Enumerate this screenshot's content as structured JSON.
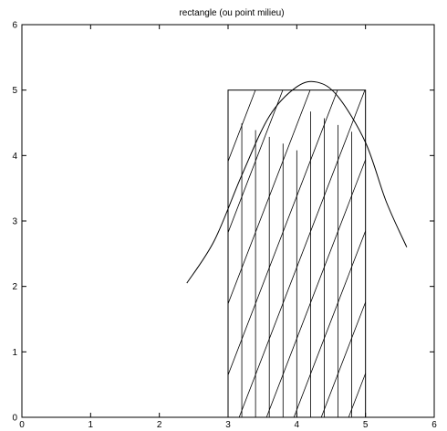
{
  "chart_data": {
    "type": "line",
    "title": "rectangle (ou point milieu)",
    "xlabel": "",
    "ylabel": "",
    "xlim": [
      0,
      6
    ],
    "ylim": [
      0,
      6
    ],
    "x_ticks": [
      "0",
      "1",
      "2",
      "3",
      "4",
      "5",
      "6"
    ],
    "y_ticks": [
      "0",
      "1",
      "2",
      "3",
      "4",
      "5",
      "6"
    ],
    "grid": false,
    "series": [
      {
        "curve": "bell",
        "x": [
          2.4,
          2.8,
          3.2,
          3.6,
          4.0,
          4.3,
          4.6,
          5.0,
          5.3,
          5.6
        ],
        "y": [
          2.05,
          2.7,
          3.7,
          4.6,
          5.05,
          5.12,
          4.9,
          4.2,
          3.3,
          2.6
        ]
      }
    ],
    "rectangle": {
      "x0": 3,
      "x1": 5,
      "y0": 0,
      "y1": 5,
      "hatched": true
    },
    "hatch_vertical_x": [
      3.2,
      3.4,
      3.6,
      3.8,
      4.0,
      4.2,
      4.4,
      4.6,
      4.8
    ]
  }
}
